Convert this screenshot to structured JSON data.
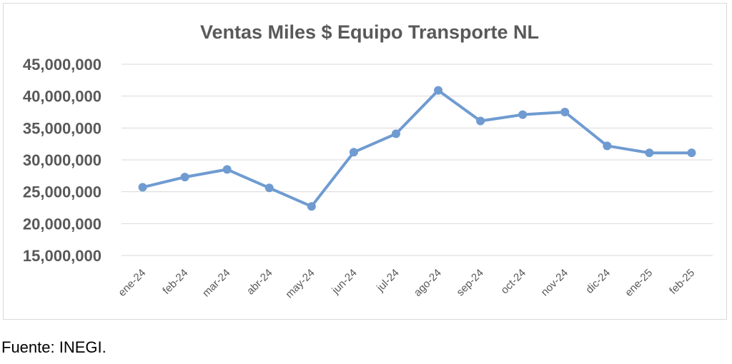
{
  "chart_data": {
    "type": "line",
    "title": "Ventas Miles $ Equipo Transporte NL",
    "xlabel": "",
    "ylabel": "",
    "categories": [
      "ene-24",
      "feb-24",
      "mar-24",
      "abr-24",
      "may-24",
      "jun-24",
      "jul-24",
      "ago-24",
      "sep-24",
      "oct-24",
      "nov-24",
      "dic-24",
      "ene-25",
      "feb-25"
    ],
    "series": [
      {
        "values": [
          25700000,
          27300000,
          28500000,
          25600000,
          22700000,
          31200000,
          34100000,
          40900000,
          36100000,
          37100000,
          37500000,
          32200000,
          31100000,
          31100000
        ],
        "color": "#6f9bd1"
      }
    ],
    "ylim": [
      15000000,
      45000000
    ],
    "yticks": [
      15000000,
      20000000,
      25000000,
      30000000,
      35000000,
      40000000,
      45000000
    ],
    "ytick_labels": [
      "15,000,000",
      "20,000,000",
      "25,000,000",
      "30,000,000",
      "35,000,000",
      "40,000,000",
      "45,000,000"
    ],
    "grid": true,
    "legend": "none"
  },
  "source_note": "Fuente: INEGI."
}
